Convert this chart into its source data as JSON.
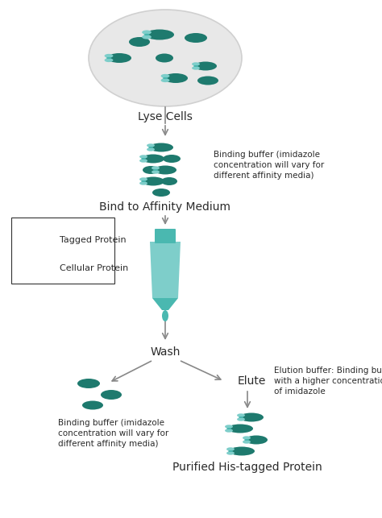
{
  "background_color": "#ffffff",
  "colors": {
    "teal_dark": "#1e7a6e",
    "teal_mid": "#4ab8b0",
    "teal_light": "#7ececa",
    "teal_pale": "#a8dbd9",
    "cell_bg": "#e8e8e8",
    "cell_border": "#d0d0d0",
    "arrow_color": "#888888",
    "text_color": "#2a2a2a",
    "legend_border": "#333333"
  },
  "labels": {
    "lyse": "Lyse Cells",
    "bind": "Bind to Affinity Medium",
    "wash": "Wash",
    "elute": "Elute",
    "purified": "Purified His-tagged Protein",
    "binding_buffer1": "Binding buffer (imidazole\nconcentration will vary for\ndifferent affinity media)",
    "binding_buffer2": "Binding buffer (imidazole\nconcentration will vary for\ndifferent affinity media)",
    "elution_buffer": "Elution buffer: Binding buffer\nwith a higher concentration\nof imidazole",
    "legend_tagged": "Tagged Protein",
    "legend_cellular": "Cellular Protein"
  },
  "font_sizes": {
    "step_label": 10,
    "annotation": 7.5,
    "legend": 8
  }
}
